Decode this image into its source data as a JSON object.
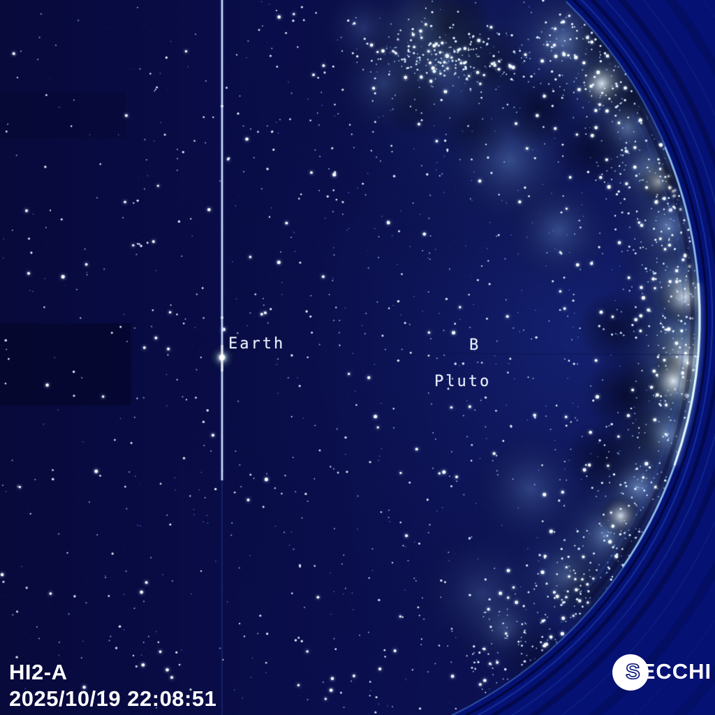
{
  "instrument_label": "HI2-A",
  "timestamp": "2025/10/19 22:08:51",
  "annotations": {
    "earth": "Earth",
    "b": "B",
    "pluto": "Pluto"
  },
  "logo": {
    "first": "S",
    "rest": "ECCHI"
  },
  "colors": {
    "field_navy_left": "#080a3c",
    "field_navy": "#0a0e4c",
    "field_navy_right": "#0d1258",
    "outer_blue": "#051173",
    "rim_cyan": "#9fd6ff",
    "cloud_blue": "#7db8f0",
    "cloud_white": "#eef8ff",
    "dust_black": "#00020e",
    "star_white": "#ffffff",
    "star_cyan": "#bfe2ff",
    "star_blue": "#4a86e0",
    "label_white": "#e6ecf8",
    "text_white": "#ffffff"
  }
}
